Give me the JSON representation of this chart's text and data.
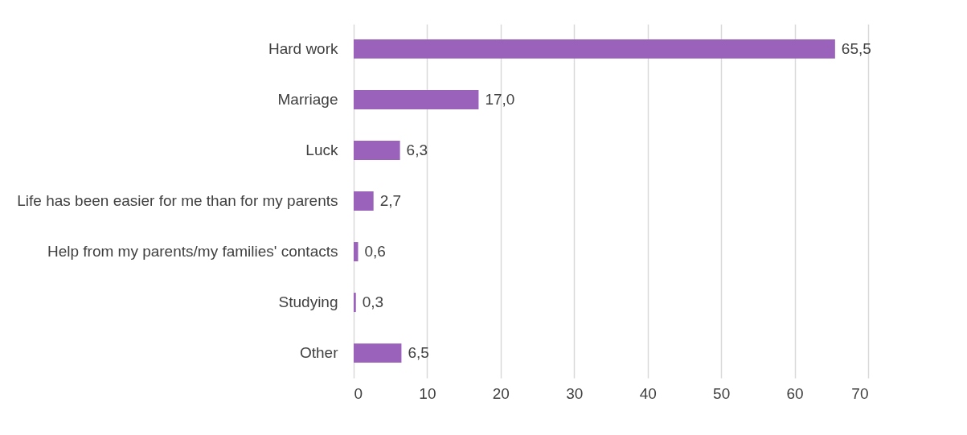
{
  "chart_data": {
    "type": "bar",
    "orientation": "horizontal",
    "categories": [
      "Hard work",
      "Marriage",
      "Luck",
      "Life has been easier for me than for my parents",
      "Help from my parents/my families' contacts",
      "Studying",
      "Other"
    ],
    "values": [
      65.5,
      17.0,
      6.3,
      2.7,
      0.6,
      0.3,
      6.5
    ],
    "value_labels": [
      "65,5",
      "17,0",
      "6,3",
      "2,7",
      "0,6",
      "0,3",
      "6,5"
    ],
    "color": "#9a62bb",
    "xlim": [
      0,
      70
    ],
    "xticks": [
      0,
      10,
      20,
      30,
      40,
      50,
      60,
      70
    ],
    "grid": "x"
  }
}
